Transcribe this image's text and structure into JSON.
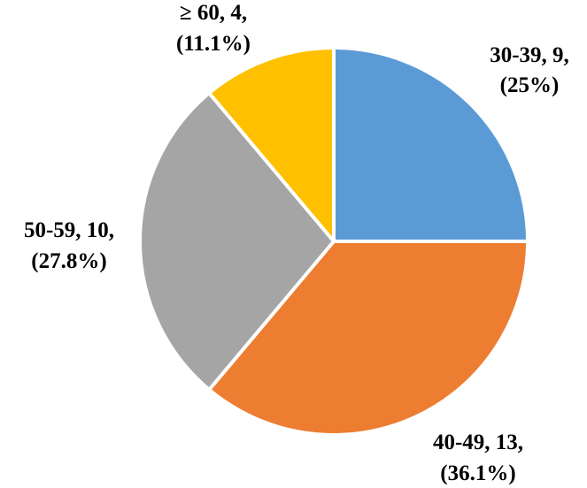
{
  "chart_data": {
    "type": "pie",
    "title": "",
    "slices": [
      {
        "category": "30-39",
        "value": 9,
        "percent": "25%",
        "color": "#5B9BD5",
        "label_line1": "30-39, 9,",
        "label_line2": "(25%)"
      },
      {
        "category": "40-49",
        "value": 13,
        "percent": "36.1%",
        "color": "#ED7D31",
        "label_line1": "40-49, 13,",
        "label_line2": "(36.1%)"
      },
      {
        "category": "50-59",
        "value": 10,
        "percent": "27.8%",
        "color": "#A5A5A5",
        "label_line1": "50-59, 10,",
        "label_line2": "(27.8%)"
      },
      {
        "category": "≥ 60",
        "value": 4,
        "percent": "11.1%",
        "color": "#FFC000",
        "label_line1": "≥ 60, 4,",
        "label_line2": "(11.1%)"
      }
    ],
    "start_angle": "12 o'clock",
    "direction": "clockwise",
    "legend": "none"
  }
}
